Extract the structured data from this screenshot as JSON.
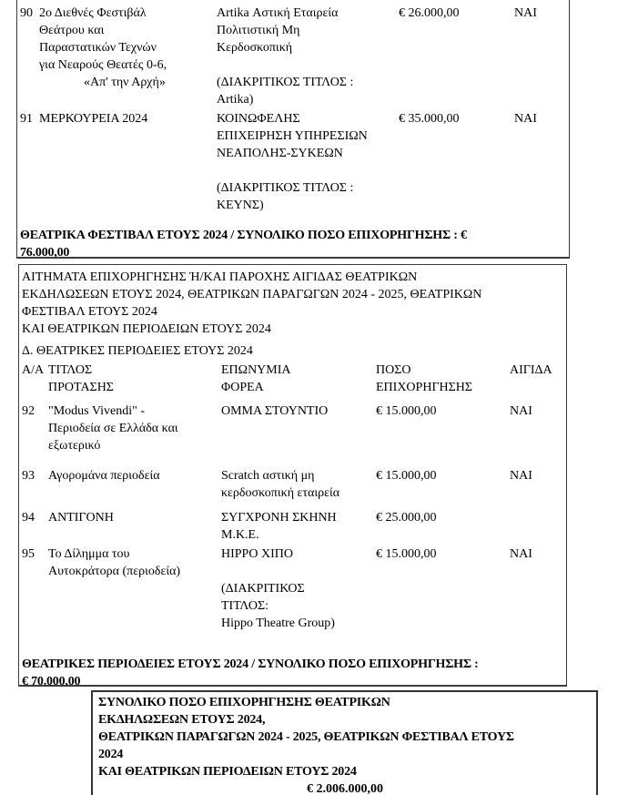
{
  "page": {
    "background": "#ffffff",
    "text_color": "#000000",
    "border_color": "#3c3c3c"
  },
  "festival_table": {
    "rows": [
      {
        "num": "90",
        "title": "2ο Διεθνές Φεστιβάλ\nΘεάτρου και\nΠαραστατικών Τεχνών\nγια Νεαρούς Θεατές 0-6,\n              «Απ' την Αρχή»",
        "entity": "Artika Αστική Εταιρεία\nΠολιτιστική Μη\nΚερδοσκοπική\n\n(ΔΙΑΚΡΙΤΙΚΟΣ ΤΙΤΛΟΣ :\nArtika)",
        "amount": "€ 26.000,00",
        "aegis": "ΝΑΙ"
      },
      {
        "num": "91",
        "title": "ΜΕΡΚΟΥΡΕΙΑ 2024",
        "entity": "ΚΟΙΝΩΦΕΛΗΣ\nΕΠΙΧΕΙΡΗΣΗ ΥΠΗΡΕΣΙΩΝ\nΝΕΑΠΟΛΗΣ-ΣΥΚΕΩΝ\n\n(ΔΙΑΚΡΙΤΙΚΟΣ ΤΙΤΛΟΣ :\nΚΕΥΝΣ)",
        "amount": "€ 35.000,00",
        "aegis": "ΝΑΙ"
      }
    ],
    "total": "ΘΕΑΤΡΙΚΑ ΦΕΣΤΙΒΑΛ ΕΤΟΥΣ 2024 / ΣΥΝΟΛΙΚΟ ΠΟΣΟ ΕΠΙΧΟΡΗΓΗΣΗΣ : €\n76.000,00"
  },
  "tours_section": {
    "heading": "ΑΙΤΗΜΑΤΑ ΕΠΙΧΟΡΗΓΗΣΗΣ Ή/ΚΑΙ ΠΑΡΟΧΗΣ ΑΙΓΙΔΑΣ ΘΕΑΤΡΙΚΩΝ\nΕΚΔΗΛΩΣΕΩΝ ΕΤΟΥΣ 2024, ΘΕΑΤΡΙΚΩΝ ΠΑΡΑΓΩΓΩΝ 2024 - 2025, ΘΕΑΤΡΙΚΩΝ\nΦΕΣΤΙΒΑΛ ΕΤΟΥΣ 2024\nΚΑΙ ΘΕΑΤΡΙΚΩΝ ΠΕΡΙΟΔΕΙΩΝ ΕΤΟΥΣ 2024",
    "subheading": "Δ. ΘΕΑΤΡΙΚΕΣ ΠΕΡΙΟΔΕΙΕΣ ΕΤΟΥΣ 2024",
    "headers": {
      "num": "Α/Α",
      "title": "ΤΙΤΛΟΣ\nΠΡΟΤΑΣΗΣ",
      "entity": "ΕΠΩΝΥΜΙΑ\nΦΟΡΕΑ",
      "amount": "ΠΟΣΟ\nΕΠΙΧΟΡΗΓΗΣΗΣ",
      "aegis": "ΑΙΓΙΔΑ"
    },
    "rows": [
      {
        "num": "92",
        "title": "\"Modus Vivendi\" -\nΠεριοδεία σε Ελλάδα και\nεξωτερικό",
        "entity": "ΟΜΜΑ ΣΤΟΥΝΤΙΟ",
        "amount": "€ 15.000,00",
        "aegis": "ΝΑΙ"
      },
      {
        "num": "93",
        "title": "Αγορομάνα περιοδεία",
        "entity": "Scratch αστική μη\nκερδοσκοπική εταιρεία",
        "amount": "€ 15.000,00",
        "aegis": "ΝΑΙ"
      },
      {
        "num": "94",
        "title": "ΑΝΤΙΓΟΝΗ",
        "entity": "ΣΥΓΧΡΟΝΗ ΣΚΗΝΗ\nΜ.Κ.Ε.",
        "amount": "€ 25.000,00",
        "aegis": ""
      },
      {
        "num": "95",
        "title": "Το Δίλημμα του\nΑυτοκράτορα (περιοδεία)",
        "entity": "ΗΙΡΡΟ ΧΙΠΟ\n\n(ΔΙΑΚΡΙΤΙΚΟΣ\nΤΙΤΛΟΣ:\nHippo Theatre Group)",
        "amount": "€ 15.000,00",
        "aegis": "ΝΑΙ"
      }
    ],
    "total": "ΘΕΑΤΡΙΚΕΣ ΠΕΡΙΟΔΕΙΕΣ ΕΤΟΥΣ 2024 / ΣΥΝΟΛΙΚΟ ΠΟΣΟ ΕΠΙΧΟΡΗΓΗΣΗΣ :\n€ 70.000,00"
  },
  "grand_total": {
    "text": "ΣΥΝΟΛΙΚΟ ΠΟΣΟ ΕΠΙΧΟΡΗΓΗΣΗΣ ΘΕΑΤΡΙΚΩΝ\nΕΚΔΗΛΩΣΕΩΝ ΕΤΟΥΣ 2024,\nΘΕΑΤΡΙΚΩΝ ΠΑΡΑΓΩΓΩΝ 2024 - 2025, ΘΕΑΤΡΙΚΩΝ ΦΕΣΤΙΒΑΛ ΕΤΟΥΣ\n2024\nΚΑΙ ΘΕΑΤΡΙΚΩΝ ΠΕΡΙΟΔΕΙΩΝ ΕΤΟΥΣ 2024",
    "amount": "€ 2.006.000,00"
  }
}
